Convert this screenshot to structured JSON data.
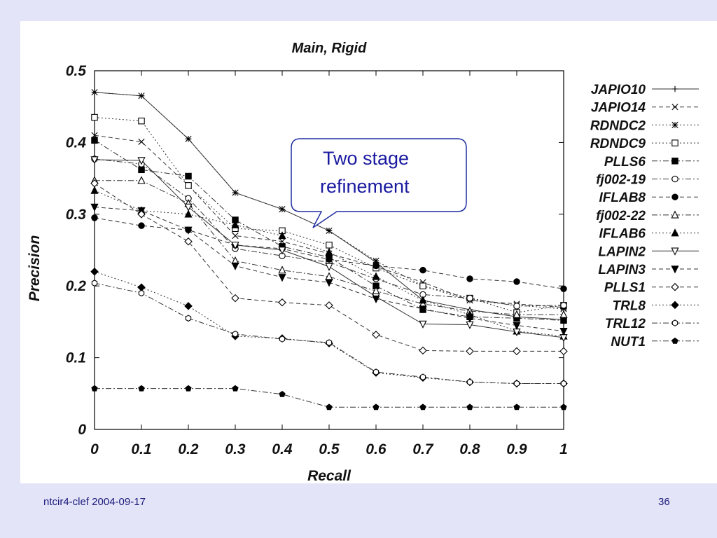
{
  "footer": {
    "left": "ntcir4-clef  2004-09-17",
    "page_number": "36"
  },
  "callout": {
    "line1": "Two stage",
    "line2": "refinement",
    "color": "#1a1aa0"
  },
  "chart_data": {
    "type": "line",
    "title": "Main, Rigid",
    "xlabel": "Recall",
    "ylabel": "Precision",
    "xlim": [
      0,
      1
    ],
    "ylim": [
      0,
      0.5
    ],
    "x_ticks": [
      "0",
      "0.1",
      "0.2",
      "0.3",
      "0.4",
      "0.5",
      "0.6",
      "0.7",
      "0.8",
      "0.9",
      "1"
    ],
    "y_ticks": [
      "0",
      "0.1",
      "0.2",
      "0.3",
      "0.4",
      "0.5"
    ],
    "grid": false,
    "legend_position": "right",
    "x": [
      0,
      0.1,
      0.2,
      0.3,
      0.4,
      0.5,
      0.6,
      0.7,
      0.8,
      0.9,
      1
    ],
    "series": [
      {
        "name": "JAPIO10",
        "marker": "plus",
        "dash": "solid",
        "values": [
          0.47,
          0.465,
          0.405,
          0.33,
          0.307,
          0.277,
          0.233,
          0.18,
          0.167,
          0.157,
          0.153
        ]
      },
      {
        "name": "JAPIO14",
        "marker": "x",
        "dash": "dashed",
        "values": [
          0.41,
          0.401,
          0.34,
          0.27,
          0.262,
          0.245,
          0.227,
          0.205,
          0.18,
          0.175,
          0.17
        ]
      },
      {
        "name": "RDNDC2",
        "marker": "star",
        "dash": "dotted",
        "values": [
          0.47,
          0.465,
          0.405,
          0.33,
          0.307,
          0.277,
          0.235,
          0.2,
          0.18,
          0.173,
          0.168
        ]
      },
      {
        "name": "RDNDC9",
        "marker": "square-open",
        "dash": "dotted",
        "values": [
          0.435,
          0.43,
          0.34,
          0.28,
          0.277,
          0.257,
          0.225,
          0.2,
          0.183,
          0.163,
          0.173
        ]
      },
      {
        "name": "PLLS6",
        "marker": "square-filled",
        "dash": "dashdot",
        "values": [
          0.403,
          0.362,
          0.353,
          0.292,
          0.255,
          0.24,
          0.2,
          0.167,
          0.157,
          0.155,
          0.152
        ]
      },
      {
        "name": "fj002-19",
        "marker": "circle-open",
        "dash": "dashdot",
        "values": [
          0.377,
          0.37,
          0.322,
          0.252,
          0.242,
          0.233,
          0.21,
          0.188,
          0.183,
          0.172,
          0.173
        ]
      },
      {
        "name": "IFLAB8",
        "marker": "circle-filled",
        "dash": "dashed",
        "values": [
          0.295,
          0.284,
          0.278,
          0.257,
          0.252,
          0.237,
          0.228,
          0.222,
          0.21,
          0.206,
          0.196
        ]
      },
      {
        "name": "fj002-22",
        "marker": "triangle-open",
        "dash": "dashdot",
        "values": [
          0.347,
          0.347,
          0.315,
          0.235,
          0.222,
          0.213,
          0.193,
          0.175,
          0.165,
          0.16,
          0.16
        ]
      },
      {
        "name": "IFLAB6",
        "marker": "triangle-filled",
        "dash": "dotted",
        "values": [
          0.333,
          0.305,
          0.3,
          0.285,
          0.27,
          0.247,
          0.213,
          0.18,
          0.16,
          0.137,
          0.13
        ]
      },
      {
        "name": "LAPIN2",
        "marker": "triangle-down-open",
        "dash": "solid",
        "values": [
          0.376,
          0.375,
          0.31,
          0.257,
          0.25,
          0.227,
          0.185,
          0.147,
          0.146,
          0.136,
          0.128
        ]
      },
      {
        "name": "LAPIN3",
        "marker": "triangle-down-filled",
        "dash": "dashed",
        "values": [
          0.31,
          0.305,
          0.278,
          0.228,
          0.212,
          0.205,
          0.182,
          0.168,
          0.155,
          0.145,
          0.137
        ]
      },
      {
        "name": "PLLS1",
        "marker": "diamond-open",
        "dash": "dashed",
        "values": [
          0.343,
          0.3,
          0.262,
          0.183,
          0.177,
          0.173,
          0.132,
          0.11,
          0.109,
          0.109,
          0.109
        ]
      },
      {
        "name": "TRL8",
        "marker": "diamond-filled",
        "dash": "dotted",
        "values": [
          0.22,
          0.198,
          0.172,
          0.13,
          0.127,
          0.12,
          0.079,
          0.072,
          0.066,
          0.064,
          0.064
        ]
      },
      {
        "name": "TRL12",
        "marker": "hexagon-open",
        "dash": "dashdot",
        "values": [
          0.204,
          0.19,
          0.155,
          0.133,
          0.126,
          0.121,
          0.08,
          0.073,
          0.066,
          0.064,
          0.064
        ]
      },
      {
        "name": "NUT1",
        "marker": "pentagon-filled",
        "dash": "dashdot",
        "values": [
          0.057,
          0.057,
          0.057,
          0.057,
          0.049,
          0.031,
          0.031,
          0.031,
          0.031,
          0.031,
          0.031
        ]
      }
    ]
  }
}
